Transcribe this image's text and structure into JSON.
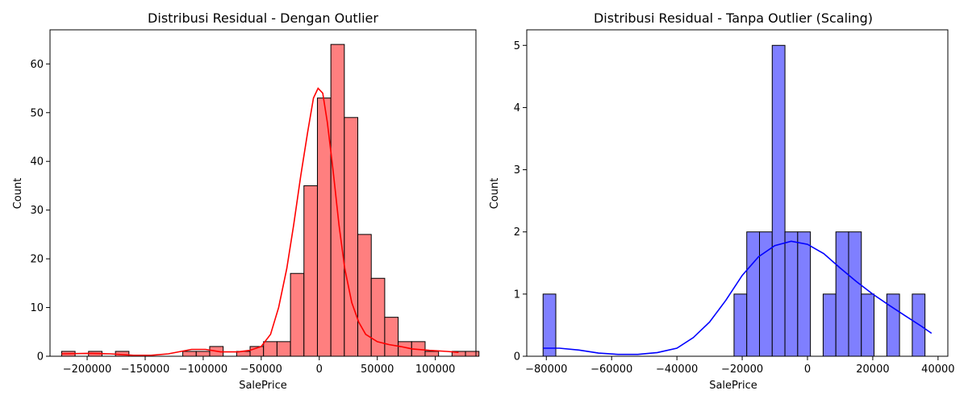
{
  "chart_data": [
    {
      "type": "bar",
      "title": "Distribusi Residual - Dengan Outlier",
      "xlabel": "SalePrice",
      "ylabel": "Count",
      "xlim": [
        -232000,
        135000
      ],
      "ylim": [
        0,
        67
      ],
      "xticks": [
        -200000,
        -150000,
        -100000,
        -50000,
        0,
        50000,
        100000
      ],
      "xtick_labels": [
        "−200000",
        "−150000",
        "−100000",
        "−50000",
        "0",
        "50000",
        "100000"
      ],
      "yticks": [
        0,
        10,
        20,
        30,
        40,
        50,
        60
      ],
      "ytick_labels": [
        "0",
        "10",
        "20",
        "30",
        "40",
        "50",
        "60"
      ],
      "bin_start": -222000,
      "bin_width": 11600,
      "values": [
        1,
        0,
        1,
        0,
        1,
        0,
        0,
        0,
        0,
        1,
        1,
        2,
        0,
        1,
        2,
        3,
        3,
        17,
        35,
        53,
        64,
        49,
        25,
        16,
        8,
        3,
        3,
        1,
        0,
        1,
        1
      ],
      "kde": [
        [
          -222000,
          0.5
        ],
        [
          -200000,
          0.6
        ],
        [
          -180000,
          0.5
        ],
        [
          -160000,
          0.2
        ],
        [
          -145000,
          0.2
        ],
        [
          -130000,
          0.5
        ],
        [
          -110000,
          1.4
        ],
        [
          -98000,
          1.4
        ],
        [
          -85000,
          0.9
        ],
        [
          -70000,
          0.9
        ],
        [
          -60000,
          1.2
        ],
        [
          -50000,
          2
        ],
        [
          -42000,
          4.5
        ],
        [
          -35000,
          10
        ],
        [
          -28000,
          18
        ],
        [
          -22000,
          27
        ],
        [
          -16000,
          37
        ],
        [
          -10000,
          46
        ],
        [
          -5000,
          53
        ],
        [
          -1000,
          55
        ],
        [
          3000,
          54
        ],
        [
          7000,
          48
        ],
        [
          12000,
          38
        ],
        [
          17000,
          27
        ],
        [
          22000,
          18
        ],
        [
          28000,
          11
        ],
        [
          34000,
          7
        ],
        [
          40000,
          4.5
        ],
        [
          50000,
          3
        ],
        [
          60000,
          2.4
        ],
        [
          70000,
          2
        ],
        [
          80000,
          1.5
        ],
        [
          95000,
          1.2
        ],
        [
          110000,
          1
        ],
        [
          120000,
          0.8
        ]
      ],
      "bar_color": "#ff7f7f",
      "line_color": "#ff0000",
      "edge_color": "#000000"
    },
    {
      "type": "bar",
      "title": "Distribusi Residual - Tanpa Outlier (Scaling)",
      "xlabel": "SalePrice",
      "ylabel": "Count",
      "xlim": [
        -86000,
        43000
      ],
      "ylim": [
        0,
        5.25
      ],
      "xticks": [
        -80000,
        -60000,
        -40000,
        -20000,
        0,
        20000,
        40000
      ],
      "xtick_labels": [
        "−80000",
        "−60000",
        "−40000",
        "−20000",
        "0",
        "20000",
        "40000"
      ],
      "yticks": [
        0,
        1,
        2,
        3,
        4,
        5
      ],
      "ytick_labels": [
        "0",
        "1",
        "2",
        "3",
        "4",
        "5"
      ],
      "bin_start": -81000,
      "bin_width": 3900,
      "values": [
        1,
        0,
        0,
        0,
        0,
        0,
        0,
        0,
        0,
        0,
        0,
        0,
        0,
        0,
        0,
        1,
        2,
        2,
        5,
        2,
        2,
        0,
        1,
        2,
        2,
        1,
        0,
        1,
        0,
        1
      ],
      "kde": [
        [
          -81000,
          0.13
        ],
        [
          -76000,
          0.13
        ],
        [
          -70000,
          0.1
        ],
        [
          -64000,
          0.05
        ],
        [
          -58000,
          0.03
        ],
        [
          -52000,
          0.03
        ],
        [
          -46000,
          0.06
        ],
        [
          -40000,
          0.13
        ],
        [
          -35000,
          0.3
        ],
        [
          -30000,
          0.55
        ],
        [
          -25000,
          0.9
        ],
        [
          -20000,
          1.3
        ],
        [
          -15000,
          1.6
        ],
        [
          -10000,
          1.78
        ],
        [
          -5000,
          1.85
        ],
        [
          0,
          1.8
        ],
        [
          5000,
          1.65
        ],
        [
          10000,
          1.42
        ],
        [
          15000,
          1.2
        ],
        [
          20000,
          1
        ],
        [
          25000,
          0.82
        ],
        [
          30000,
          0.65
        ],
        [
          35000,
          0.48
        ],
        [
          38000,
          0.37
        ]
      ],
      "bar_color": "#7f7fff",
      "line_color": "#0000ff",
      "edge_color": "#000000"
    }
  ]
}
